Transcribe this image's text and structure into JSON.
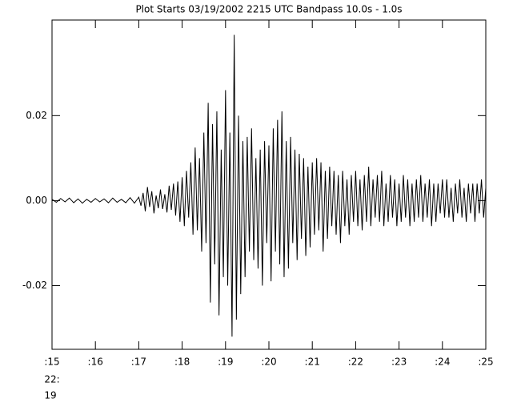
{
  "chart_data": {
    "type": "line",
    "title": "Plot Starts 03/19/2002 2215 UTC Bandpass 10.0s -  1.0s",
    "annotations": [
      "22:",
      "19"
    ],
    "xlim": [
      15,
      25
    ],
    "ylim": [
      -0.035,
      0.0425
    ],
    "xticks": [
      {
        "value": 15,
        "label": ":15"
      },
      {
        "value": 16,
        "label": ":16"
      },
      {
        "value": 17,
        "label": ":17"
      },
      {
        "value": 18,
        "label": ":18"
      },
      {
        "value": 19,
        "label": ":19"
      },
      {
        "value": 20,
        "label": ":20"
      },
      {
        "value": 21,
        "label": ":21"
      },
      {
        "value": 22,
        "label": ":22"
      },
      {
        "value": 23,
        "label": ":23"
      },
      {
        "value": 24,
        "label": ":24"
      },
      {
        "value": 25,
        "label": ":25"
      }
    ],
    "yticks": [
      -0.02,
      {
        "value": 0,
        "label": "0.00"
      },
      0.02
    ],
    "color": "#000000",
    "x": [
      15,
      15.1,
      15.2,
      15.3,
      15.4,
      15.5,
      15.6,
      15.7,
      15.8,
      15.9,
      16,
      16.1,
      16.2,
      16.3,
      16.4,
      16.5,
      16.6,
      16.7,
      16.8,
      16.9,
      17,
      17.05,
      17.1,
      17.15,
      17.2,
      17.25,
      17.3,
      17.35,
      17.4,
      17.45,
      17.5,
      17.55,
      17.6,
      17.65,
      17.7,
      17.75,
      17.8,
      17.85,
      17.9,
      17.95,
      18,
      18.05,
      18.1,
      18.15,
      18.2,
      18.25,
      18.3,
      18.35,
      18.4,
      18.45,
      18.5,
      18.55,
      18.6,
      18.65,
      18.7,
      18.75,
      18.8,
      18.85,
      18.9,
      18.95,
      19,
      19.05,
      19.1,
      19.15,
      19.2,
      19.25,
      19.3,
      19.35,
      19.4,
      19.45,
      19.5,
      19.55,
      19.6,
      19.65,
      19.7,
      19.75,
      19.8,
      19.85,
      19.9,
      19.95,
      20,
      20.05,
      20.1,
      20.15,
      20.2,
      20.25,
      20.3,
      20.35,
      20.4,
      20.45,
      20.5,
      20.55,
      20.6,
      20.65,
      20.7,
      20.75,
      20.8,
      20.85,
      20.9,
      20.95,
      21,
      21.05,
      21.1,
      21.15,
      21.2,
      21.25,
      21.3,
      21.35,
      21.4,
      21.45,
      21.5,
      21.55,
      21.6,
      21.65,
      21.7,
      21.75,
      21.8,
      21.85,
      21.9,
      21.95,
      22,
      22.05,
      22.1,
      22.15,
      22.2,
      22.25,
      22.3,
      22.35,
      22.4,
      22.45,
      22.5,
      22.55,
      22.6,
      22.65,
      22.7,
      22.75,
      22.8,
      22.85,
      22.9,
      22.95,
      23,
      23.05,
      23.1,
      23.15,
      23.2,
      23.25,
      23.3,
      23.35,
      23.4,
      23.45,
      23.5,
      23.55,
      23.6,
      23.65,
      23.7,
      23.75,
      23.8,
      23.85,
      23.9,
      23.95,
      24,
      24.05,
      24.1,
      24.15,
      24.2,
      24.25,
      24.3,
      24.35,
      24.4,
      24.45,
      24.5,
      24.55,
      24.6,
      24.65,
      24.7,
      24.75,
      24.8,
      24.85,
      24.9,
      24.95,
      25
    ],
    "values": [
      0.0003,
      -0.0004,
      0.0005,
      -0.0003,
      0.0006,
      -0.0005,
      0.0004,
      -0.0006,
      0.0003,
      -0.0004,
      0.0005,
      -0.0003,
      0.0004,
      -0.0005,
      0.0006,
      -0.0004,
      0.0003,
      -0.0005,
      0.0007,
      -0.0006,
      0.0008,
      -0.0012,
      0.0018,
      -0.0025,
      0.0032,
      -0.0015,
      0.0022,
      -0.003,
      0.0012,
      -0.0018,
      0.0026,
      -0.002,
      0.0015,
      -0.0028,
      0.0035,
      -0.0022,
      0.004,
      -0.0035,
      0.0045,
      -0.005,
      0.0055,
      -0.006,
      0.007,
      -0.004,
      0.009,
      -0.008,
      0.0125,
      -0.007,
      0.01,
      -0.012,
      0.016,
      -0.01,
      0.023,
      -0.024,
      0.018,
      -0.015,
      0.021,
      -0.027,
      0.012,
      -0.018,
      0.026,
      -0.02,
      0.016,
      -0.032,
      0.039,
      -0.028,
      0.02,
      -0.022,
      0.014,
      -0.018,
      0.015,
      -0.012,
      0.017,
      -0.014,
      0.01,
      -0.016,
      0.012,
      -0.02,
      0.014,
      -0.01,
      0.013,
      -0.019,
      0.017,
      -0.012,
      0.019,
      -0.015,
      0.021,
      -0.018,
      0.014,
      -0.016,
      0.015,
      -0.01,
      0.012,
      -0.014,
      0.011,
      -0.009,
      0.01,
      -0.013,
      0.008,
      -0.011,
      0.009,
      -0.008,
      0.01,
      -0.007,
      0.009,
      -0.012,
      0.007,
      -0.009,
      0.008,
      -0.006,
      0.007,
      -0.008,
      0.006,
      -0.01,
      0.007,
      -0.006,
      0.005,
      -0.008,
      0.006,
      -0.005,
      0.007,
      -0.006,
      0.005,
      -0.007,
      0.006,
      -0.005,
      0.008,
      -0.006,
      0.005,
      -0.004,
      0.006,
      -0.005,
      0.007,
      -0.006,
      0.004,
      -0.005,
      0.006,
      -0.004,
      0.005,
      -0.006,
      0.004,
      -0.005,
      0.006,
      -0.004,
      0.005,
      -0.006,
      0.004,
      -0.005,
      0.005,
      -0.004,
      0.006,
      -0.005,
      0.004,
      -0.004,
      0.005,
      -0.006,
      0.004,
      -0.005,
      0.004,
      -0.003,
      0.005,
      -0.004,
      0.005,
      -0.004,
      0.003,
      -0.005,
      0.004,
      -0.003,
      0.005,
      -0.004,
      0.003,
      -0.005,
      0.004,
      -0.003,
      0.004,
      -0.005,
      0.004,
      -0.003,
      0.005,
      -0.004,
      0.003
    ]
  }
}
